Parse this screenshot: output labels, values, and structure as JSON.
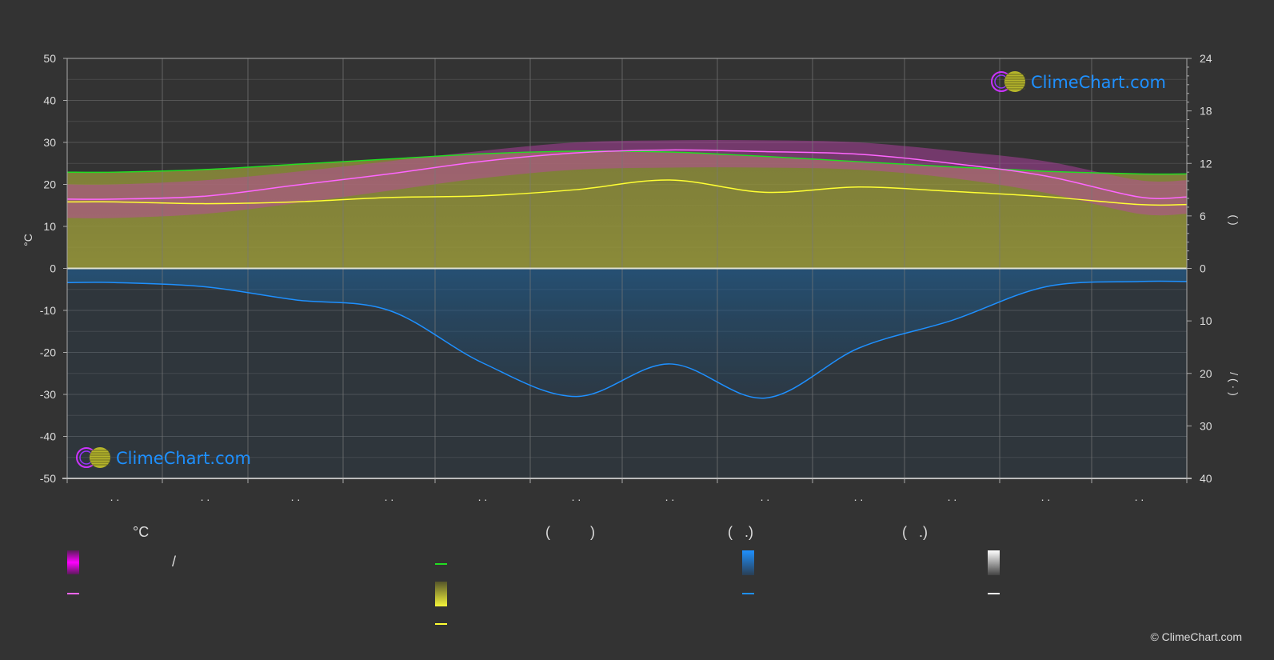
{
  "colors": {
    "background": "#333333",
    "temperature_band": "#e600e6",
    "avg_temp": "#ff66ff",
    "daylight": "#22dd22",
    "sunshine_band": "#c8c832",
    "sunshine": "#ffff33",
    "precipitation": "#1e90ff",
    "snow": "#ffffff",
    "logo_text": "#1e90ff"
  },
  "logo": {
    "text": "ClimeChart.com"
  },
  "copyright": "© ClimeChart.com",
  "legend": {
    "col1_title": "°C",
    "col1_item1": "/",
    "col2_title": "(          )",
    "col3_title": "(   .)",
    "col4_title": "(   .)"
  },
  "axes": {
    "left_label": "°C",
    "right_upper_label": "(   )",
    "right_lower_label": "/  (  ·  )"
  },
  "chart_data": {
    "type": "line",
    "x_tick_labels": [
      ". .",
      ". .",
      ". .",
      ". .",
      ". .",
      ". .",
      ". .",
      ". .",
      ". .",
      ". .",
      ". .",
      ". ."
    ],
    "y_left": {
      "unit": "°C",
      "range": [
        -50,
        50
      ],
      "ticks": [
        50,
        40,
        30,
        20,
        10,
        0,
        -10,
        -20,
        -30,
        -40,
        -50
      ]
    },
    "y_right_upper": {
      "unit": "hours",
      "range": [
        0,
        24
      ],
      "ticks": [
        24,
        18,
        12,
        6,
        0
      ]
    },
    "y_right_lower": {
      "unit": "mm",
      "range": [
        0,
        40
      ],
      "ticks": [
        0,
        10,
        20,
        30,
        40
      ]
    },
    "grid": true,
    "series": [
      {
        "key": "avg_temp",
        "axis": "left",
        "values": [
          16.5,
          17.2,
          19.8,
          22.5,
          25.5,
          27.5,
          28.2,
          27.8,
          27.2,
          25.0,
          22.0,
          17.0
        ]
      },
      {
        "key": "temp_max",
        "axis": "left",
        "values": [
          20,
          21,
          23,
          25.5,
          28,
          30,
          30.5,
          30.5,
          30,
          28,
          25.5,
          21
        ]
      },
      {
        "key": "temp_min",
        "axis": "left",
        "values": [
          12,
          13,
          15.5,
          18.5,
          21.5,
          23.5,
          24,
          24,
          23.5,
          21.5,
          18,
          13
        ]
      },
      {
        "key": "daylight",
        "axis": "right_upper",
        "values": [
          11.0,
          11.3,
          11.9,
          12.5,
          13.1,
          13.4,
          13.3,
          12.8,
          12.2,
          11.6,
          11.1,
          10.8
        ]
      },
      {
        "key": "sunshine",
        "axis": "right_upper",
        "values": [
          7.6,
          7.4,
          7.6,
          8.1,
          8.3,
          9.0,
          10.1,
          8.7,
          9.3,
          8.8,
          8.2,
          7.3
        ]
      },
      {
        "key": "precipitation",
        "axis": "right_lower",
        "values": [
          2.7,
          3.5,
          6.0,
          8.0,
          18.0,
          24.4,
          18.2,
          24.7,
          15.2,
          9.9,
          3.5,
          2.5
        ]
      }
    ]
  }
}
